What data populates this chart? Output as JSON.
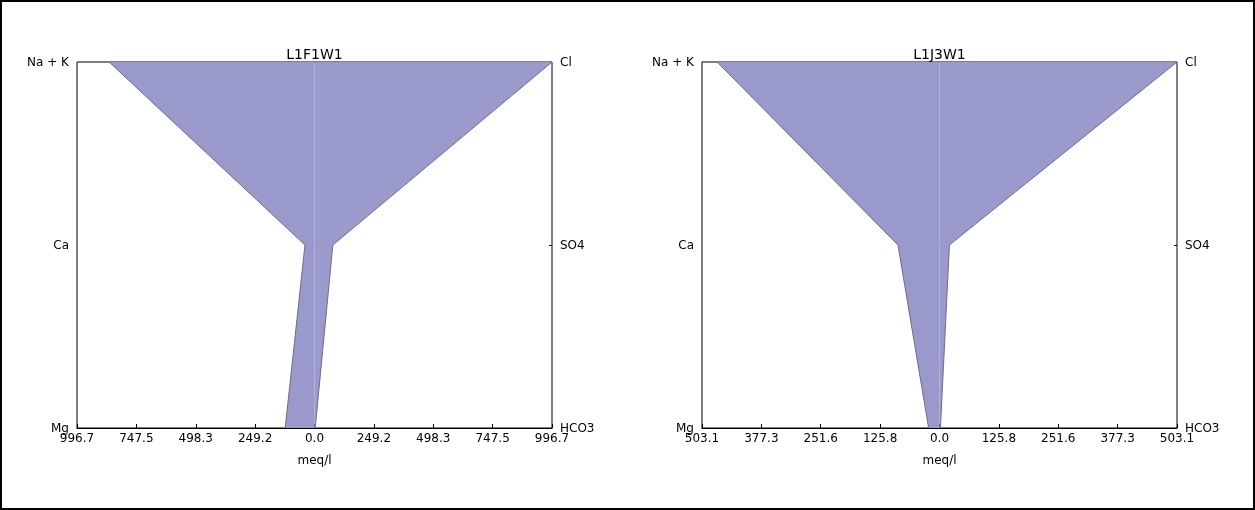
{
  "chart_data": [
    {
      "type": "area",
      "title": "L1F1W1",
      "xlabel": "meq/l",
      "orientation": "horizontal",
      "categories": [
        "Na + K",
        "Ca",
        "Mg"
      ],
      "y2_categories": [
        "Cl",
        "SO4",
        "HCO3"
      ],
      "series": [
        {
          "color": "#9999cc",
          "values": [
            -862,
            -40,
            -123
          ]
        },
        {
          "color": "#9a9acc",
          "values": [
            996.7,
            77,
            3
          ]
        }
      ],
      "xlim": [
        -996.7,
        996.7
      ],
      "xticks": [
        {
          "value": -996.7,
          "label": "996.7"
        },
        {
          "value": -747.5,
          "label": "747.5"
        },
        {
          "value": -498.3,
          "label": "498.3"
        },
        {
          "value": -249.2,
          "label": "249.2"
        },
        {
          "value": 0,
          "label": "0.0"
        },
        {
          "value": 249.2,
          "label": "249.2"
        },
        {
          "value": 498.3,
          "label": "498.3"
        },
        {
          "value": 747.5,
          "label": "747.5"
        },
        {
          "value": 996.7,
          "label": "996.7"
        }
      ]
    },
    {
      "type": "area",
      "title": "L1J3W1",
      "xlabel": "meq/l",
      "orientation": "horizontal",
      "categories": [
        "Na + K",
        "Ca",
        "Mg"
      ],
      "y2_categories": [
        "Cl",
        "SO4",
        "HCO3"
      ],
      "series": [
        {
          "color": "#9999cc",
          "values": [
            -471,
            -88,
            -23
          ]
        },
        {
          "color": "#9a9acc",
          "values": [
            503.1,
            21,
            2
          ]
        }
      ],
      "xlim": [
        -503.1,
        503.1
      ],
      "xticks": [
        {
          "value": -503.1,
          "label": "503.1"
        },
        {
          "value": -377.3,
          "label": "377.3"
        },
        {
          "value": -251.6,
          "label": "251.6"
        },
        {
          "value": -125.8,
          "label": "125.8"
        },
        {
          "value": 0,
          "label": "0.0"
        },
        {
          "value": 125.8,
          "label": "125.8"
        },
        {
          "value": 251.6,
          "label": "251.6"
        },
        {
          "value": 377.3,
          "label": "377.3"
        },
        {
          "value": 503.1,
          "label": "503.1"
        }
      ]
    }
  ]
}
